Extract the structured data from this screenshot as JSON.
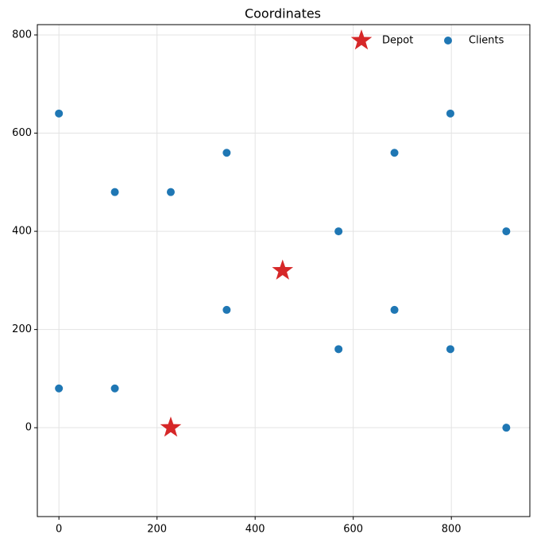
{
  "chart_data": {
    "type": "scatter",
    "title": "Coordinates",
    "series": [
      {
        "name": "Depot",
        "color": "#d62728",
        "marker": "star",
        "x": [
          228,
          456
        ],
        "values": [
          0,
          320
        ]
      },
      {
        "name": "Clients",
        "color": "#1f77b4",
        "marker": "circle",
        "x": [
          0,
          114,
          228,
          342,
          684,
          798,
          570,
          912,
          342,
          684,
          570,
          798,
          0,
          114,
          912
        ],
        "values": [
          640,
          480,
          480,
          560,
          560,
          640,
          400,
          400,
          240,
          240,
          160,
          160,
          80,
          80,
          0
        ]
      }
    ],
    "xlim": [
      -44,
      960
    ],
    "ylim": [
      -181,
      821
    ],
    "xticks": [
      0,
      200,
      400,
      600,
      800
    ],
    "yticks": [
      0,
      200,
      400,
      600,
      800
    ],
    "grid": true,
    "legend": "upper right"
  }
}
